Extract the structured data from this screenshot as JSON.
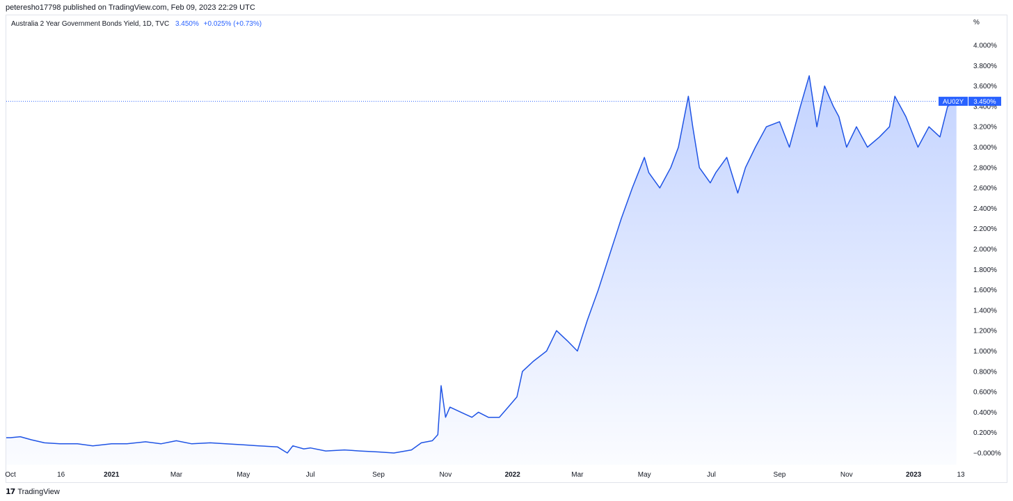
{
  "header": {
    "published": "peteresho17798 published on TradingView.com, Feb 09, 2023 22:29 UTC"
  },
  "legend": {
    "title": "Australia 2 Year Government Bonds Yield, 1D, TVC",
    "value": "3.450%",
    "change": "+0.025% (+0.73%)"
  },
  "footer": {
    "brand": "TradingView"
  },
  "colors": {
    "line": "#1e53e5",
    "accent": "#2962ff"
  },
  "chart_data": {
    "type": "area",
    "title": "Australia 2 Year Government Bonds Yield, 1D, TVC",
    "unit": "%",
    "ylim": [
      -0.1,
      4.2
    ],
    "y_ticks": [
      4.0,
      3.8,
      3.6,
      3.4,
      3.2,
      3.0,
      2.8,
      2.6,
      2.4,
      2.2,
      2.0,
      1.8,
      1.6,
      1.4,
      1.2,
      1.0,
      0.8,
      0.6,
      0.4,
      0.2,
      0.0
    ],
    "y_tick_labels": [
      "4.000%",
      "3.800%",
      "3.600%",
      "3.400%",
      "3.200%",
      "3.000%",
      "2.800%",
      "2.600%",
      "2.400%",
      "2.200%",
      "2.000%",
      "1.800%",
      "1.600%",
      "1.400%",
      "1.200%",
      "1.000%",
      "0.800%",
      "0.600%",
      "0.400%",
      "0.200%",
      "−0.000%"
    ],
    "x_ticks": [
      {
        "date": "2020-10-01",
        "label": "Oct",
        "bold": false
      },
      {
        "date": "2020-11-16",
        "label": "16",
        "bold": false
      },
      {
        "date": "2021-01-01",
        "label": "2021",
        "bold": true
      },
      {
        "date": "2021-03-01",
        "label": "Mar",
        "bold": false
      },
      {
        "date": "2021-05-01",
        "label": "May",
        "bold": false
      },
      {
        "date": "2021-07-01",
        "label": "Jul",
        "bold": false
      },
      {
        "date": "2021-09-01",
        "label": "Sep",
        "bold": false
      },
      {
        "date": "2021-11-01",
        "label": "Nov",
        "bold": false
      },
      {
        "date": "2022-01-01",
        "label": "2022",
        "bold": true
      },
      {
        "date": "2022-03-01",
        "label": "Mar",
        "bold": false
      },
      {
        "date": "2022-05-01",
        "label": "May",
        "bold": false
      },
      {
        "date": "2022-07-01",
        "label": "Jul",
        "bold": false
      },
      {
        "date": "2022-09-01",
        "label": "Sep",
        "bold": false
      },
      {
        "date": "2022-11-01",
        "label": "Nov",
        "bold": false
      },
      {
        "date": "2023-01-01",
        "label": "2023",
        "bold": true
      },
      {
        "date": "2023-02-13",
        "label": "13",
        "bold": false
      }
    ],
    "last_value": 3.45,
    "last_value_label": "3.450%",
    "symbol_label": "AU02Y",
    "series": [
      {
        "x": [
          "2020-10-01",
          "2020-10-10",
          "2020-10-20",
          "2020-11-01",
          "2020-11-15",
          "2020-12-01",
          "2020-12-15",
          "2021-01-01",
          "2021-01-15",
          "2021-02-01",
          "2021-02-15",
          "2021-03-01",
          "2021-03-15",
          "2021-04-01",
          "2021-04-15",
          "2021-05-01",
          "2021-05-15",
          "2021-06-01",
          "2021-06-10",
          "2021-06-15",
          "2021-06-25",
          "2021-07-01",
          "2021-07-15",
          "2021-08-01",
          "2021-08-15",
          "2021-09-01",
          "2021-09-15",
          "2021-10-01",
          "2021-10-10",
          "2021-10-20",
          "2021-10-25",
          "2021-10-28",
          "2021-11-01",
          "2021-11-05",
          "2021-11-15",
          "2021-11-25",
          "2021-12-01",
          "2021-12-10",
          "2021-12-20",
          "2021-12-28",
          "2022-01-05",
          "2022-01-10",
          "2022-01-20",
          "2022-02-01",
          "2022-02-10",
          "2022-02-20",
          "2022-03-01",
          "2022-03-10",
          "2022-03-20",
          "2022-04-01",
          "2022-04-10",
          "2022-04-20",
          "2022-05-01",
          "2022-05-05",
          "2022-05-15",
          "2022-05-25",
          "2022-06-01",
          "2022-06-10",
          "2022-06-14",
          "2022-06-20",
          "2022-06-30",
          "2022-07-05",
          "2022-07-15",
          "2022-07-25",
          "2022-08-01",
          "2022-08-10",
          "2022-08-20",
          "2022-09-01",
          "2022-09-10",
          "2022-09-20",
          "2022-09-28",
          "2022-10-05",
          "2022-10-12",
          "2022-10-20",
          "2022-10-25",
          "2022-11-01",
          "2022-11-10",
          "2022-11-20",
          "2022-12-01",
          "2022-12-10",
          "2022-12-15",
          "2022-12-25",
          "2023-01-05",
          "2023-01-15",
          "2023-01-25",
          "2023-02-01",
          "2023-02-09"
        ],
        "y": [
          0.15,
          0.16,
          0.13,
          0.1,
          0.09,
          0.09,
          0.07,
          0.09,
          0.09,
          0.11,
          0.09,
          0.12,
          0.09,
          0.1,
          0.09,
          0.08,
          0.07,
          0.06,
          0.0,
          0.07,
          0.04,
          0.05,
          0.02,
          0.03,
          0.02,
          0.01,
          0.0,
          0.03,
          0.1,
          0.12,
          0.18,
          0.66,
          0.35,
          0.45,
          0.4,
          0.35,
          0.4,
          0.35,
          0.35,
          0.45,
          0.55,
          0.8,
          0.9,
          1.0,
          1.2,
          1.1,
          1.0,
          1.3,
          1.6,
          2.0,
          2.3,
          2.6,
          2.9,
          2.75,
          2.6,
          2.8,
          3.0,
          3.5,
          3.2,
          2.8,
          2.65,
          2.75,
          2.9,
          2.55,
          2.8,
          3.0,
          3.2,
          3.25,
          3.0,
          3.4,
          3.7,
          3.2,
          3.6,
          3.4,
          3.3,
          3.0,
          3.2,
          3.0,
          3.1,
          3.2,
          3.5,
          3.3,
          3.0,
          3.2,
          3.1,
          3.4,
          3.45
        ]
      }
    ]
  }
}
